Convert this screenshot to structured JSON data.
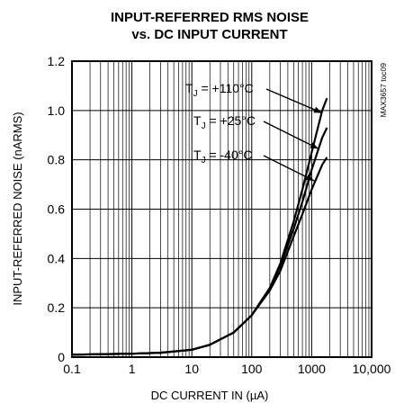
{
  "chart_data": {
    "type": "line",
    "title_line1": "INPUT-REFERRED RMS NOISE",
    "title_line2": "vs. DC INPUT CURRENT",
    "xlabel": "DC CURRENT IN (µA)",
    "ylabel": "INPUT-REFERRED NOISE (nARMS)",
    "x_scale": "log",
    "xlim": [
      0.1,
      10000
    ],
    "ylim": [
      0,
      1.2
    ],
    "x_ticks": [
      {
        "value": 0.1,
        "label": "0.1"
      },
      {
        "value": 1,
        "label": "1"
      },
      {
        "value": 10,
        "label": "10"
      },
      {
        "value": 100,
        "label": "100"
      },
      {
        "value": 1000,
        "label": "1000"
      },
      {
        "value": 10000,
        "label": "10,000"
      }
    ],
    "y_ticks": [
      {
        "value": 0,
        "label": "0"
      },
      {
        "value": 0.2,
        "label": "0.2"
      },
      {
        "value": 0.4,
        "label": "0.4"
      },
      {
        "value": 0.6,
        "label": "0.6"
      },
      {
        "value": 0.8,
        "label": "0.8"
      },
      {
        "value": 1.0,
        "label": "1.0"
      },
      {
        "value": 1.2,
        "label": "1.2"
      }
    ],
    "grid": true,
    "figure_code": "MAX3657 toc09",
    "series": [
      {
        "name": "TJ = +110°C",
        "label_main": "T",
        "label_sub": "J",
        "label_rest": " = +110°C",
        "x": [
          0.1,
          0.3,
          1,
          3,
          10,
          20,
          50,
          100,
          200,
          300,
          500,
          700,
          1000,
          1500,
          1800
        ],
        "y": [
          0.01,
          0.012,
          0.014,
          0.018,
          0.03,
          0.05,
          0.1,
          0.17,
          0.28,
          0.38,
          0.55,
          0.68,
          0.83,
          1.0,
          1.05
        ]
      },
      {
        "name": "TJ = +25°C",
        "label_main": "T",
        "label_sub": "J",
        "label_rest": " = +25°C",
        "x": [
          0.1,
          0.3,
          1,
          3,
          10,
          20,
          50,
          100,
          200,
          300,
          500,
          700,
          1000,
          1500,
          1800
        ],
        "y": [
          0.01,
          0.012,
          0.014,
          0.018,
          0.03,
          0.05,
          0.1,
          0.17,
          0.28,
          0.37,
          0.52,
          0.63,
          0.76,
          0.89,
          0.93
        ]
      },
      {
        "name": "TJ = -40°C",
        "label_main": "T",
        "label_sub": "J",
        "label_rest": " = -40°C",
        "x": [
          0.1,
          0.3,
          1,
          3,
          10,
          20,
          50,
          100,
          200,
          300,
          500,
          700,
          1000,
          1500,
          1800
        ],
        "y": [
          0.01,
          0.012,
          0.014,
          0.018,
          0.03,
          0.05,
          0.1,
          0.17,
          0.27,
          0.35,
          0.49,
          0.58,
          0.68,
          0.78,
          0.81
        ]
      }
    ],
    "annotation_targets": [
      {
        "series": 0,
        "x": 1500,
        "y": 0.99
      },
      {
        "series": 1,
        "x": 1300,
        "y": 0.845
      },
      {
        "series": 2,
        "x": 1100,
        "y": 0.715
      }
    ],
    "line_color": "#000000"
  }
}
